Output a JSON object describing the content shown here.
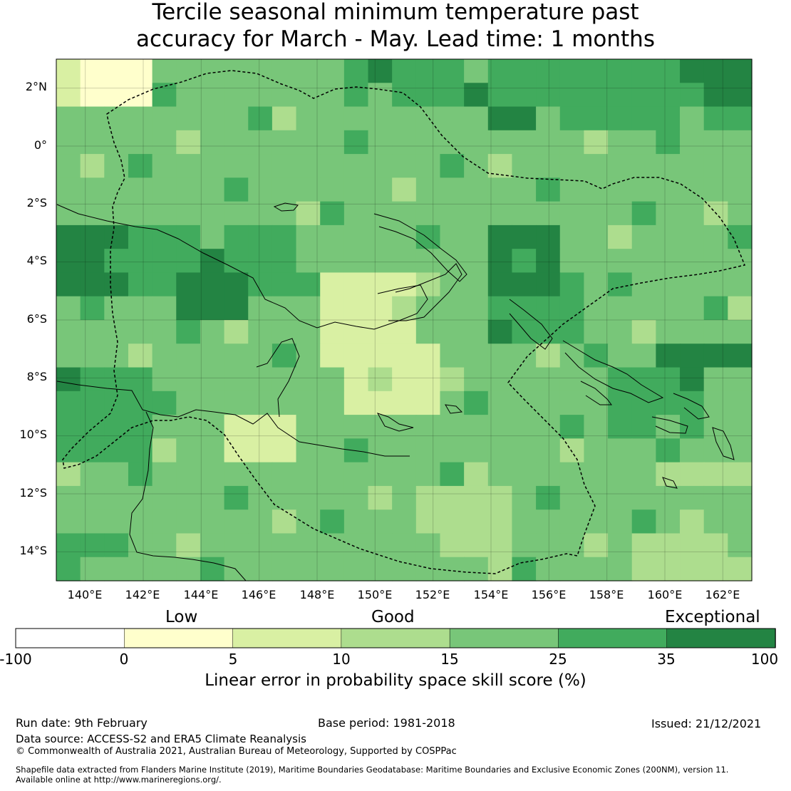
{
  "title_line1": "Tercile seasonal minimum temperature past",
  "title_line2": "accuracy for March - May. Lead time: 1 months",
  "map": {
    "y_labels": [
      "2°N",
      "0°",
      "2°S",
      "4°S",
      "6°S",
      "8°S",
      "10°S",
      "12°S",
      "14°S"
    ],
    "x_labels": [
      "140°E",
      "142°E",
      "144°E",
      "146°E",
      "148°E",
      "150°E",
      "152°E",
      "154°E",
      "156°E",
      "158°E",
      "160°E",
      "162°E"
    ],
    "lon_range": [
      139,
      163
    ],
    "lat_range": [
      -15,
      3
    ],
    "colors": {
      "c0": "#ffffcc",
      "c1": "#d9f0a3",
      "c2": "#addd8e",
      "c3": "#78c679",
      "c4": "#41ab5d",
      "c5": "#238443"
    }
  },
  "colorbar": {
    "categories": [
      "Low",
      "Good",
      "Exceptional"
    ],
    "ticks": [
      "-100",
      "0",
      "5",
      "10",
      "15",
      "25",
      "35",
      "100"
    ],
    "colors": [
      "#ffffff",
      "#ffffcc",
      "#d9f0a3",
      "#addd8e",
      "#78c679",
      "#41ab5d",
      "#238443"
    ],
    "label": "Linear error in probability space skill score (%)"
  },
  "footer": {
    "run_date": "Run date: 9th February",
    "base_period": "Base period: 1981-2018",
    "issued": "Issued: 21/12/2021",
    "data_source": "Data source: ACCESS-S2 and ERA5 Climate Reanalysis",
    "copyright": "© Commonwealth of Australia 2021, Australian Bureau of Meteorology, Supported by COSPPac",
    "shapefile_line1": "Shapefile data extracted from Flanders Marine Institute (2019), Maritime Boundaries Geodatabase: Maritime Boundaries and Exclusive Economic Zones (200NM), version 11.",
    "shapefile_line2": "Available online at http://www.marineregions.org/."
  }
}
